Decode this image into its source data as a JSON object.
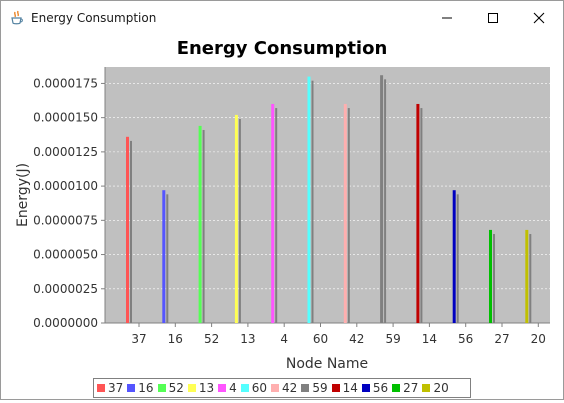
{
  "window": {
    "title": "Energy Consumption"
  },
  "icons": {
    "app": "java-cup-icon",
    "minimize": "minimize-icon",
    "maximize": "maximize-icon",
    "close": "close-icon"
  },
  "colors": {
    "plot_background": "#c0c0c0",
    "secondary_bar": "#808080"
  },
  "chart_data": {
    "type": "bar",
    "title": "Energy Consumption",
    "xlabel": "Node Name",
    "ylabel": "Energy(J)",
    "ylim": [
      0,
      1.87e-05
    ],
    "yticks": [
      "0.0000000",
      "0.0000025",
      "0.0000050",
      "0.0000075",
      "0.0000100",
      "0.0000125",
      "0.0000150",
      "0.0000175"
    ],
    "yticks_values": [
      0,
      2.5e-06,
      5e-06,
      7.5e-06,
      1e-05,
      1.25e-05,
      1.5e-05,
      1.75e-05
    ],
    "grid": true,
    "legend_position": "bottom",
    "categories": [
      "37",
      "16",
      "52",
      "13",
      "4",
      "60",
      "42",
      "59",
      "14",
      "56",
      "27",
      "20"
    ],
    "series": [
      {
        "name": "37",
        "color": "#ff5555",
        "values": [
          1.36e-05,
          0,
          0,
          0,
          0,
          0,
          0,
          0,
          0,
          0,
          0,
          0
        ]
      },
      {
        "name": "16",
        "color": "#5555ff",
        "values": [
          0,
          9.7e-06,
          0,
          0,
          0,
          0,
          0,
          0,
          0,
          0,
          0,
          0
        ]
      },
      {
        "name": "52",
        "color": "#55ff55",
        "values": [
          0,
          0,
          1.44e-05,
          0,
          0,
          0,
          0,
          0,
          0,
          0,
          0,
          0
        ]
      },
      {
        "name": "13",
        "color": "#ffff55",
        "values": [
          0,
          0,
          0,
          1.52e-05,
          0,
          0,
          0,
          0,
          0,
          0,
          0,
          0
        ]
      },
      {
        "name": "4",
        "color": "#ff55ff",
        "values": [
          0,
          0,
          0,
          0,
          1.6e-05,
          0,
          0,
          0,
          0,
          0,
          0,
          0
        ]
      },
      {
        "name": "60",
        "color": "#55ffff",
        "values": [
          0,
          0,
          0,
          0,
          0,
          1.8e-05,
          0,
          0,
          0,
          0,
          0,
          0
        ]
      },
      {
        "name": "42",
        "color": "#ffafaf",
        "values": [
          0,
          0,
          0,
          0,
          0,
          0,
          1.6e-05,
          0,
          0,
          0,
          0,
          0
        ]
      },
      {
        "name": "59",
        "color": "#808080",
        "values": [
          0,
          0,
          0,
          0,
          0,
          0,
          0,
          1.81e-05,
          0,
          0,
          0,
          0
        ]
      },
      {
        "name": "14",
        "color": "#c00000",
        "values": [
          0,
          0,
          0,
          0,
          0,
          0,
          0,
          0,
          1.6e-05,
          0,
          0,
          0
        ]
      },
      {
        "name": "56",
        "color": "#0000c0",
        "values": [
          0,
          0,
          0,
          0,
          0,
          0,
          0,
          0,
          0,
          9.7e-06,
          0,
          0
        ]
      },
      {
        "name": "27",
        "color": "#00c000",
        "values": [
          0,
          0,
          0,
          0,
          0,
          0,
          0,
          0,
          0,
          0,
          6.8e-06,
          0
        ]
      },
      {
        "name": "20",
        "color": "#c0c000",
        "values": [
          0,
          0,
          0,
          0,
          0,
          0,
          0,
          0,
          0,
          0,
          0,
          6.8e-06
        ]
      }
    ],
    "secondary_values": [
      1.33e-05,
      9.4e-06,
      1.41e-05,
      1.49e-05,
      1.57e-05,
      1.77e-05,
      1.57e-05,
      1.78e-05,
      1.57e-05,
      9.4e-06,
      6.5e-06,
      6.5e-06
    ]
  }
}
